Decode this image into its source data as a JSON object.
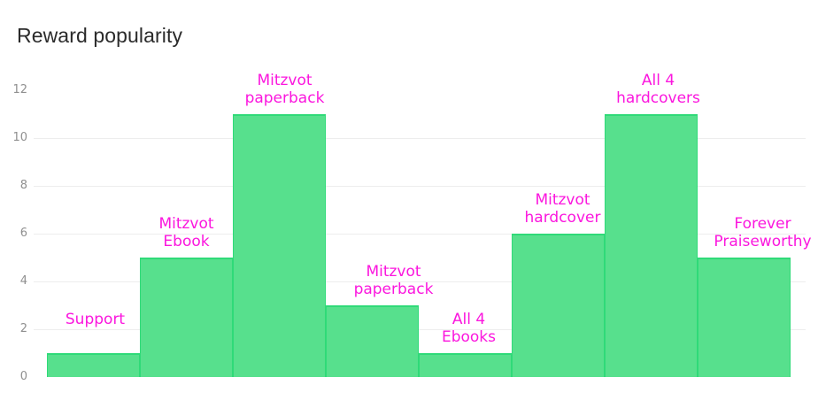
{
  "title": "Reward popularity",
  "colors": {
    "background": "#ffffff",
    "title_text": "#2b2b2b",
    "axis_text": "#8f8f8f",
    "grid_line": "#ededed",
    "bar_fill": "#57e08d",
    "bar_border": "#2fda78",
    "label_text": "#fb16de"
  },
  "chart_data": {
    "type": "bar",
    "variant": "histogram-adjacent-bars",
    "title": "Reward popularity",
    "xlabel": "",
    "ylabel": "",
    "categories": [
      "Support",
      "Mitzvot Ebook",
      "Mitzvot paperback",
      "Mitzvot paperback",
      "All 4 Ebooks",
      "Mitzvot hardcover",
      "All 4 hardcovers",
      "Forever Praiseworthy"
    ],
    "values": [
      1,
      5,
      11,
      3,
      1,
      6,
      11,
      5
    ],
    "bar_label_lines": [
      [
        "Support"
      ],
      [
        "Mitzvot",
        "Ebook"
      ],
      [
        "Mitzvot",
        "paperback"
      ],
      [
        "Mitzvot",
        "paperback"
      ],
      [
        "All 4",
        "Ebooks"
      ],
      [
        "Mitzvot",
        "hardcover"
      ],
      [
        "All 4",
        "hardcovers"
      ],
      [
        "Forever",
        "Praiseworthy"
      ]
    ],
    "ylim": [
      0,
      12
    ],
    "yticks": [
      0,
      2,
      4,
      6,
      8,
      10,
      12
    ],
    "grid": "horizontal-light",
    "legend": "none",
    "bar_labels_position": "above-bars"
  }
}
